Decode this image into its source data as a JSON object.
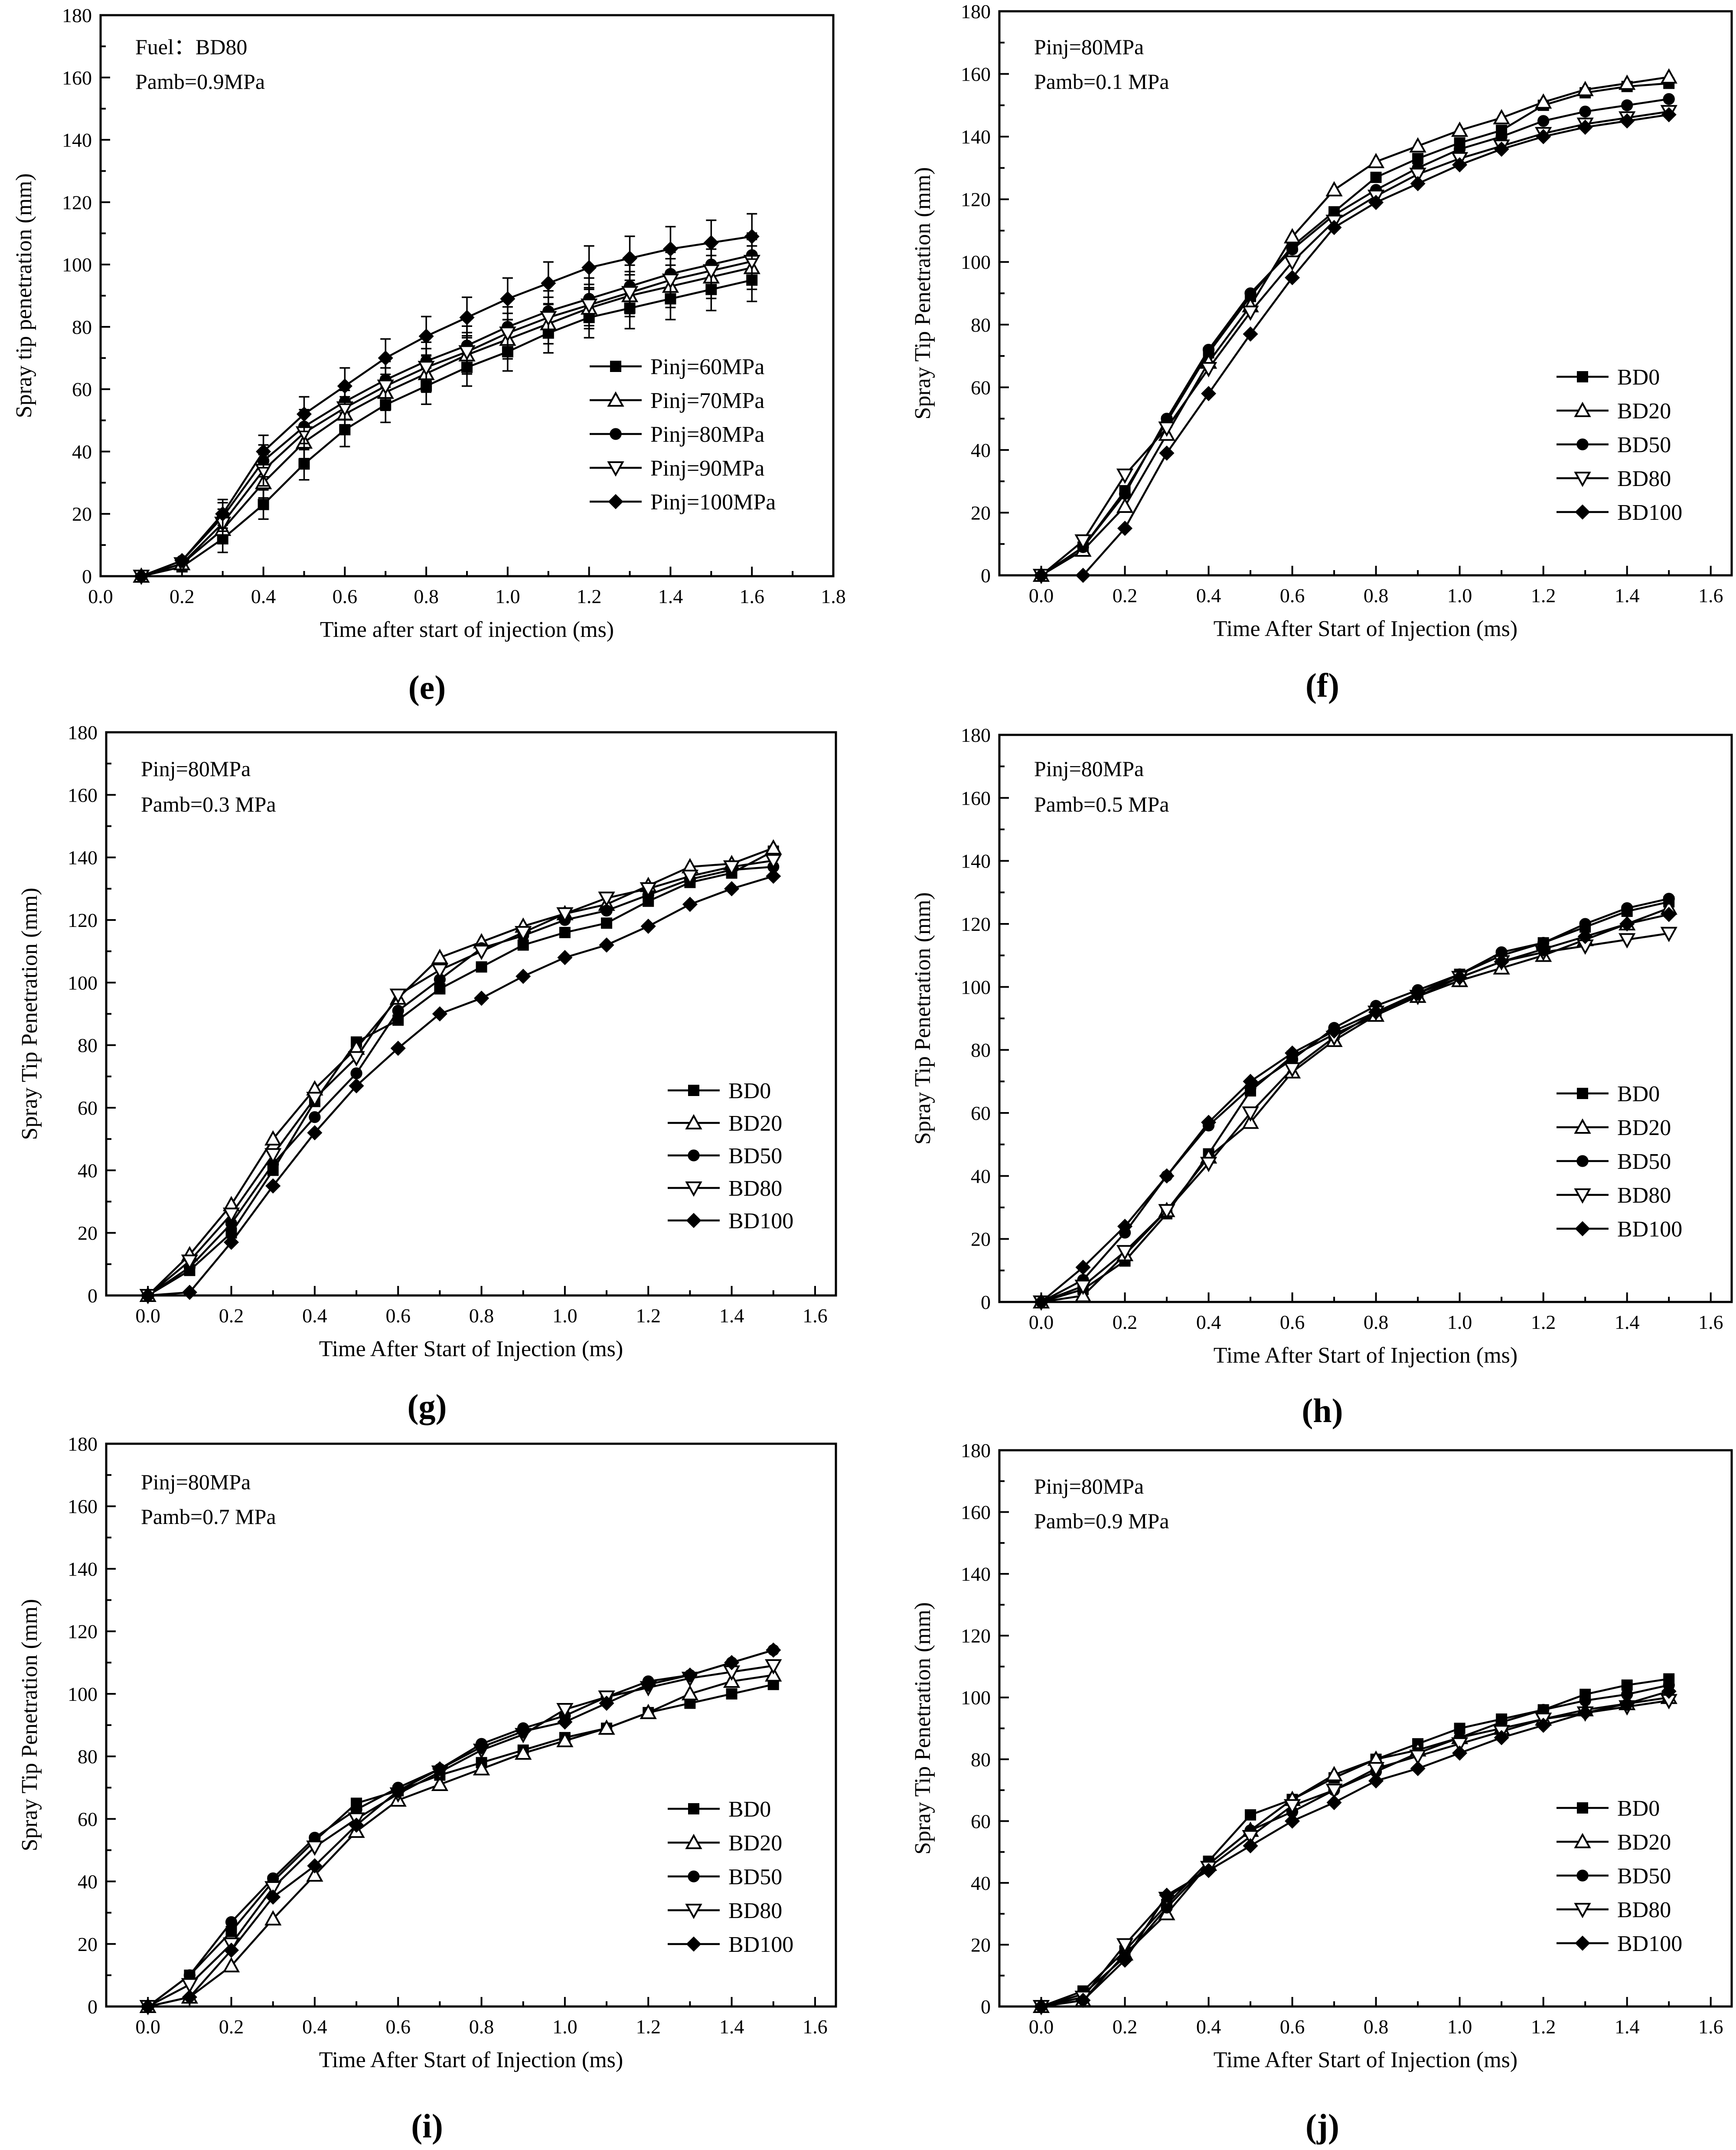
{
  "colors": {
    "ink": "#000000",
    "background": "#ffffff"
  },
  "chart_data": [
    {
      "type": "line",
      "panel_label": "(e)",
      "annotations": [
        "Fuel：BD80",
        "Pamb=0.9MPa"
      ],
      "xlabel": "Time after start of injection (ms)",
      "ylabel": "Spray tip penetration (mm)",
      "xlim": [
        0.0,
        1.8
      ],
      "ylim": [
        0,
        180
      ],
      "xticks": [
        0.0,
        0.2,
        0.4,
        0.6,
        0.8,
        1.0,
        1.2,
        1.4,
        1.6,
        1.8
      ],
      "xtick_labels": [
        "0.0",
        "0.2",
        "0.4",
        "0.6",
        "0.8",
        "1.0",
        "1.2",
        "1.4",
        "1.6",
        "1.8"
      ],
      "yticks": [
        0,
        20,
        40,
        60,
        80,
        100,
        120,
        140,
        160,
        180
      ],
      "ytick_labels": [
        "0",
        "20",
        "40",
        "60",
        "80",
        "100",
        "120",
        "140",
        "160",
        "180"
      ],
      "error_bars": true,
      "legend_position": "center-right",
      "x": [
        0.1,
        0.2,
        0.3,
        0.4,
        0.5,
        0.6,
        0.7,
        0.8,
        0.9,
        1.0,
        1.1,
        1.2,
        1.3,
        1.4,
        1.5,
        1.6
      ],
      "series": [
        {
          "name": "Pinj=60MPa",
          "marker": "square",
          "values": [
            0,
            3,
            12,
            23,
            36,
            47,
            55,
            61,
            67,
            72,
            78,
            83,
            86,
            89,
            92,
            95
          ]
        },
        {
          "name": "Pinj=70MPa",
          "marker": "triangle-up",
          "values": [
            0,
            4,
            15,
            30,
            43,
            52,
            59,
            65,
            71,
            76,
            81,
            86,
            90,
            93,
            96,
            99
          ]
        },
        {
          "name": "Pinj=80MPa",
          "marker": "circle",
          "values": [
            0,
            5,
            19,
            37,
            48,
            56,
            63,
            69,
            74,
            80,
            85,
            89,
            93,
            97,
            100,
            103
          ]
        },
        {
          "name": "Pinj=90MPa",
          "marker": "triangle-down",
          "values": [
            0,
            4,
            17,
            34,
            46,
            54,
            61,
            67,
            72,
            78,
            83,
            87,
            91,
            95,
            98,
            101
          ]
        },
        {
          "name": "Pinj=100MPa",
          "marker": "diamond",
          "values": [
            0,
            5,
            20,
            40,
            52,
            61,
            70,
            77,
            83,
            89,
            94,
            99,
            102,
            105,
            107,
            109
          ]
        }
      ]
    },
    {
      "type": "line",
      "panel_label": "(f)",
      "annotations": [
        "Pinj=80MPa",
        "Pamb=0.1 MPa"
      ],
      "xlabel": "Time After Start of Injection (ms)",
      "ylabel": "Spray Tip Penetration (mm)",
      "xlim": [
        -0.1,
        1.65
      ],
      "ylim": [
        0,
        180
      ],
      "xticks": [
        0.0,
        0.2,
        0.4,
        0.6,
        0.8,
        1.0,
        1.2,
        1.4,
        1.6
      ],
      "xtick_labels": [
        "0.0",
        "0.2",
        "0.4",
        "0.6",
        "0.8",
        "1.0",
        "1.2",
        "1.4",
        "1.6"
      ],
      "yticks": [
        0,
        20,
        40,
        60,
        80,
        100,
        120,
        140,
        160,
        180
      ],
      "ytick_labels": [
        "0",
        "20",
        "40",
        "60",
        "80",
        "100",
        "120",
        "140",
        "160",
        "180"
      ],
      "error_bars": false,
      "legend_position": "lower-right",
      "x": [
        0.0,
        0.1,
        0.2,
        0.3,
        0.4,
        0.5,
        0.6,
        0.7,
        0.8,
        0.9,
        1.0,
        1.1,
        1.2,
        1.3,
        1.4,
        1.5
      ],
      "series": [
        {
          "name": "BD0",
          "marker": "square",
          "values": [
            0,
            9,
            27,
            49,
            71,
            89,
            105,
            116,
            127,
            133,
            138,
            142,
            150,
            154,
            156,
            157
          ]
        },
        {
          "name": "BD20",
          "marker": "triangle-up",
          "values": [
            0,
            8,
            22,
            45,
            68,
            86,
            108,
            123,
            132,
            137,
            142,
            146,
            151,
            155,
            157,
            159
          ]
        },
        {
          "name": "BD50",
          "marker": "circle",
          "values": [
            0,
            9,
            26,
            50,
            72,
            90,
            104,
            115,
            123,
            130,
            136,
            140,
            145,
            148,
            150,
            152
          ]
        },
        {
          "name": "BD80",
          "marker": "triangle-down",
          "values": [
            0,
            11,
            32,
            47,
            66,
            84,
            100,
            113,
            121,
            128,
            133,
            137,
            141,
            144,
            146,
            148
          ]
        },
        {
          "name": "BD100",
          "marker": "diamond",
          "values": [
            0,
            0,
            15,
            39,
            58,
            77,
            95,
            111,
            119,
            125,
            131,
            136,
            140,
            143,
            145,
            147
          ]
        }
      ]
    },
    {
      "type": "line",
      "panel_label": "(g)",
      "annotations": [
        "Pinj=80MPa",
        "Pamb=0.3 MPa"
      ],
      "xlabel": "Time After Start of Injection (ms)",
      "ylabel": "Spray Tip Penetration (mm)",
      "xlim": [
        -0.1,
        1.65
      ],
      "ylim": [
        0,
        180
      ],
      "xticks": [
        0.0,
        0.2,
        0.4,
        0.6,
        0.8,
        1.0,
        1.2,
        1.4,
        1.6
      ],
      "xtick_labels": [
        "0.0",
        "0.2",
        "0.4",
        "0.6",
        "0.8",
        "1.0",
        "1.2",
        "1.4",
        "1.6"
      ],
      "yticks": [
        0,
        20,
        40,
        60,
        80,
        100,
        120,
        140,
        160,
        180
      ],
      "ytick_labels": [
        "0",
        "20",
        "40",
        "60",
        "80",
        "100",
        "120",
        "140",
        "160",
        "180"
      ],
      "error_bars": false,
      "legend_position": "lower-right",
      "x": [
        0.0,
        0.1,
        0.2,
        0.3,
        0.4,
        0.5,
        0.6,
        0.7,
        0.8,
        0.9,
        1.0,
        1.1,
        1.2,
        1.3,
        1.4,
        1.5
      ],
      "series": [
        {
          "name": "BD0",
          "marker": "square",
          "values": [
            0,
            8,
            20,
            40,
            62,
            81,
            88,
            98,
            105,
            112,
            116,
            119,
            126,
            132,
            135,
            142
          ]
        },
        {
          "name": "BD20",
          "marker": "triangle-up",
          "values": [
            0,
            13,
            29,
            50,
            66,
            79,
            95,
            108,
            113,
            118,
            122,
            125,
            131,
            137,
            138,
            143
          ]
        },
        {
          "name": "BD50",
          "marker": "circle",
          "values": [
            0,
            9,
            23,
            42,
            57,
            71,
            91,
            101,
            111,
            115,
            120,
            123,
            128,
            133,
            136,
            137
          ]
        },
        {
          "name": "BD80",
          "marker": "triangle-down",
          "values": [
            0,
            11,
            26,
            45,
            63,
            76,
            96,
            104,
            110,
            116,
            122,
            127,
            130,
            134,
            137,
            139
          ]
        },
        {
          "name": "BD100",
          "marker": "diamond",
          "values": [
            0,
            1,
            17,
            35,
            52,
            67,
            79,
            90,
            95,
            102,
            108,
            112,
            118,
            125,
            130,
            134
          ]
        }
      ]
    },
    {
      "type": "line",
      "panel_label": "(h)",
      "annotations": [
        "Pinj=80MPa",
        "Pamb=0.5 MPa"
      ],
      "xlabel": "Time After Start of Injection (ms)",
      "ylabel": "Spray Tip Penetration (mm)",
      "xlim": [
        -0.1,
        1.65
      ],
      "ylim": [
        0,
        180
      ],
      "xticks": [
        0.0,
        0.2,
        0.4,
        0.6,
        0.8,
        1.0,
        1.2,
        1.4,
        1.6
      ],
      "xtick_labels": [
        "0.0",
        "0.2",
        "0.4",
        "0.6",
        "0.8",
        "1.0",
        "1.2",
        "1.4",
        "1.6"
      ],
      "yticks": [
        0,
        20,
        40,
        60,
        80,
        100,
        120,
        140,
        160,
        180
      ],
      "ytick_labels": [
        "0",
        "20",
        "40",
        "60",
        "80",
        "100",
        "120",
        "140",
        "160",
        "180"
      ],
      "error_bars": false,
      "legend_position": "lower-right",
      "x": [
        0.0,
        0.1,
        0.2,
        0.3,
        0.4,
        0.5,
        0.6,
        0.7,
        0.8,
        0.9,
        1.0,
        1.1,
        1.2,
        1.3,
        1.4,
        1.5
      ],
      "series": [
        {
          "name": "BD0",
          "marker": "square",
          "values": [
            0,
            4,
            13,
            28,
            47,
            67,
            78,
            85,
            91,
            98,
            104,
            110,
            114,
            119,
            124,
            127
          ]
        },
        {
          "name": "BD20",
          "marker": "triangle-up",
          "values": [
            0,
            2,
            15,
            29,
            46,
            57,
            73,
            83,
            91,
            97,
            102,
            106,
            110,
            115,
            120,
            125
          ]
        },
        {
          "name": "BD50",
          "marker": "circle",
          "values": [
            0,
            7,
            22,
            40,
            56,
            68,
            77,
            87,
            94,
            99,
            104,
            111,
            114,
            120,
            125,
            128
          ]
        },
        {
          "name": "BD80",
          "marker": "triangle-down",
          "values": [
            0,
            5,
            16,
            29,
            44,
            60,
            74,
            84,
            92,
            97,
            103,
            108,
            111,
            113,
            115,
            117
          ]
        },
        {
          "name": "BD100",
          "marker": "diamond",
          "values": [
            0,
            11,
            24,
            40,
            57,
            70,
            79,
            86,
            92,
            98,
            103,
            108,
            112,
            116,
            120,
            123
          ]
        }
      ]
    },
    {
      "type": "line",
      "panel_label": "(i)",
      "annotations": [
        "Pinj=80MPa",
        "Pamb=0.7 MPa"
      ],
      "xlabel": "Time After Start of Injection (ms)",
      "ylabel": "Spray Tip Penetration (mm)",
      "xlim": [
        -0.1,
        1.65
      ],
      "ylim": [
        0,
        180
      ],
      "xticks": [
        0.0,
        0.2,
        0.4,
        0.6,
        0.8,
        1.0,
        1.2,
        1.4,
        1.6
      ],
      "xtick_labels": [
        "0.0",
        "0.2",
        "0.4",
        "0.6",
        "0.8",
        "1.0",
        "1.2",
        "1.4",
        "1.6"
      ],
      "yticks": [
        0,
        20,
        40,
        60,
        80,
        100,
        120,
        140,
        160,
        180
      ],
      "ytick_labels": [
        "0",
        "20",
        "40",
        "60",
        "80",
        "100",
        "120",
        "140",
        "160",
        "180"
      ],
      "error_bars": false,
      "legend_position": "lower-right",
      "x": [
        0.0,
        0.1,
        0.2,
        0.3,
        0.4,
        0.5,
        0.6,
        0.7,
        0.8,
        0.9,
        1.0,
        1.1,
        1.2,
        1.3,
        1.4,
        1.5
      ],
      "series": [
        {
          "name": "BD0",
          "marker": "square",
          "values": [
            0,
            10,
            24,
            40,
            53,
            65,
            69,
            74,
            78,
            82,
            86,
            89,
            94,
            97,
            100,
            103
          ]
        },
        {
          "name": "BD20",
          "marker": "triangle-up",
          "values": [
            0,
            3,
            13,
            28,
            42,
            56,
            66,
            71,
            76,
            81,
            85,
            89,
            94,
            100,
            104,
            106
          ]
        },
        {
          "name": "BD50",
          "marker": "circle",
          "values": [
            0,
            10,
            27,
            41,
            54,
            63,
            70,
            76,
            84,
            89,
            93,
            99,
            104,
            106,
            110,
            114
          ]
        },
        {
          "name": "BD80",
          "marker": "triangle-down",
          "values": [
            0,
            7,
            20,
            38,
            51,
            60,
            68,
            75,
            82,
            87,
            95,
            99,
            102,
            105,
            107,
            109
          ]
        },
        {
          "name": "BD100",
          "marker": "diamond",
          "values": [
            0,
            3,
            18,
            35,
            45,
            58,
            69,
            76,
            83,
            88,
            91,
            97,
            103,
            106,
            110,
            114
          ]
        }
      ]
    },
    {
      "type": "line",
      "panel_label": "(j)",
      "annotations": [
        "Pinj=80MPa",
        "Pamb=0.9 MPa"
      ],
      "xlabel": "Time After Start of Injection (ms)",
      "ylabel": "Spray Tip Penetration (mm)",
      "xlim": [
        -0.1,
        1.65
      ],
      "ylim": [
        0,
        180
      ],
      "xticks": [
        0.0,
        0.2,
        0.4,
        0.6,
        0.8,
        1.0,
        1.2,
        1.4,
        1.6
      ],
      "xtick_labels": [
        "0.0",
        "0.2",
        "0.4",
        "0.6",
        "0.8",
        "1.0",
        "1.2",
        "1.4",
        "1.6"
      ],
      "yticks": [
        0,
        20,
        40,
        60,
        80,
        100,
        120,
        140,
        160,
        180
      ],
      "ytick_labels": [
        "0",
        "20",
        "40",
        "60",
        "80",
        "100",
        "120",
        "140",
        "160",
        "180"
      ],
      "error_bars": false,
      "legend_position": "lower-right",
      "x": [
        0.0,
        0.1,
        0.2,
        0.3,
        0.4,
        0.5,
        0.6,
        0.7,
        0.8,
        0.9,
        1.0,
        1.1,
        1.2,
        1.3,
        1.4,
        1.5
      ],
      "series": [
        {
          "name": "BD0",
          "marker": "square",
          "values": [
            0,
            5,
            18,
            33,
            47,
            62,
            67,
            74,
            80,
            85,
            90,
            93,
            96,
            101,
            104,
            106
          ]
        },
        {
          "name": "BD20",
          "marker": "triangle-up",
          "values": [
            0,
            2,
            17,
            30,
            46,
            57,
            67,
            75,
            80,
            83,
            87,
            90,
            93,
            96,
            98,
            100
          ]
        },
        {
          "name": "BD50",
          "marker": "circle",
          "values": [
            0,
            4,
            16,
            32,
            46,
            57,
            63,
            70,
            76,
            82,
            87,
            92,
            96,
            99,
            101,
            104
          ]
        },
        {
          "name": "BD80",
          "marker": "triangle-down",
          "values": [
            0,
            3,
            20,
            35,
            45,
            55,
            65,
            70,
            77,
            81,
            85,
            89,
            93,
            95,
            97,
            99
          ]
        },
        {
          "name": "BD100",
          "marker": "diamond",
          "values": [
            0,
            2,
            15,
            36,
            44,
            52,
            60,
            66,
            73,
            77,
            82,
            87,
            91,
            95,
            98,
            102
          ]
        }
      ]
    }
  ]
}
